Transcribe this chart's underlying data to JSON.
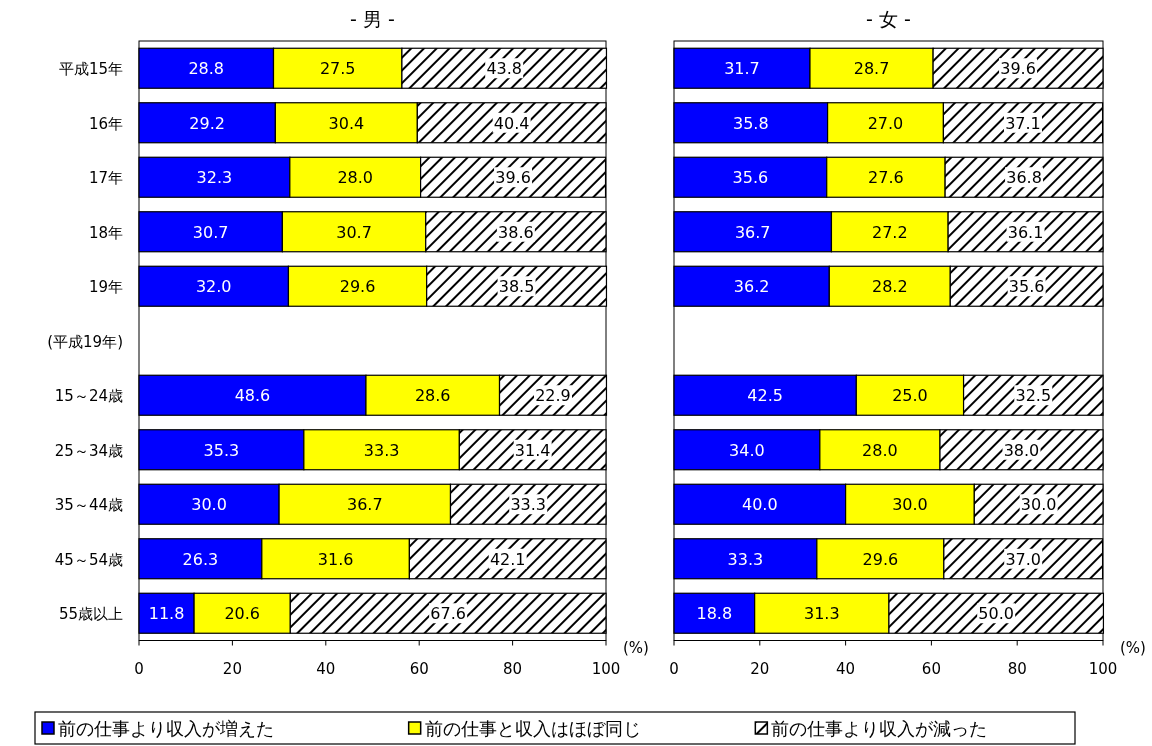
{
  "chart_data": [
    {
      "type": "bar",
      "orientation": "horizontal",
      "stacked": true,
      "title": "- 男 -",
      "xlabel": "(%)",
      "categories": [
        "平成15年",
        "16年",
        "17年",
        "18年",
        "19年",
        "(平成19年)",
        "15～24歳",
        "25～34歳",
        "35～44歳",
        "45～54歳",
        "55歳以上"
      ],
      "series": [
        {
          "name": "前の仕事より収入が増えた",
          "color": "#0000ff",
          "values": [
            28.8,
            29.2,
            32.3,
            30.7,
            32.0,
            null,
            48.6,
            35.3,
            30.0,
            26.3,
            11.8
          ],
          "value_labels": [
            "28.8",
            "29.2",
            "32.3",
            "30.7",
            "32.0",
            null,
            "48.6",
            "35.3",
            "30.0",
            "26.3",
            "11.8"
          ]
        },
        {
          "name": "前の仕事と収入はほぼ同じ",
          "color": "#ffff00",
          "values": [
            27.5,
            30.4,
            28.0,
            30.7,
            29.6,
            null,
            28.6,
            33.3,
            36.7,
            31.6,
            20.6
          ],
          "value_labels": [
            "27.5",
            "30.4",
            "28.0",
            "30.7",
            "29.6",
            null,
            "28.6",
            "33.3",
            "36.7",
            "31.6",
            "20.6"
          ]
        },
        {
          "name": "前の仕事より収入が減った",
          "color": "#000000",
          "values": [
            43.8,
            40.4,
            39.6,
            38.6,
            38.5,
            null,
            22.9,
            31.4,
            33.3,
            42.1,
            67.6
          ],
          "value_labels": [
            "43.8",
            "40.4",
            "39.6",
            "38.6",
            "38.5",
            null,
            "22.9",
            "31.4",
            "33.3",
            "42.1",
            "67.6"
          ]
        }
      ],
      "xlim": [
        0,
        100
      ],
      "xticks": [
        0,
        20,
        40,
        60,
        80,
        100
      ],
      "legend": "bottom",
      "grid": false
    },
    {
      "type": "bar",
      "orientation": "horizontal",
      "stacked": true,
      "title": "- 女 -",
      "xlabel": "(%)",
      "categories": [
        null,
        null,
        null,
        null,
        null,
        null,
        null,
        null,
        null,
        null,
        null
      ],
      "series": [
        {
          "color": "#0000ff",
          "values": [
            31.7,
            35.8,
            35.6,
            36.7,
            36.2,
            null,
            42.5,
            34.0,
            40.0,
            33.3,
            18.8
          ],
          "value_labels": [
            "31.7",
            "35.8",
            "35.6",
            "36.7",
            "36.2",
            null,
            "42.5",
            "34.0",
            "40.0",
            "33.3",
            "18.8"
          ]
        },
        {
          "color": "#ffff00",
          "values": [
            28.7,
            27.0,
            27.6,
            27.2,
            28.2,
            null,
            25.0,
            28.0,
            30.0,
            29.6,
            31.3
          ],
          "value_labels": [
            "28.7",
            "27.0",
            "27.6",
            "27.2",
            "28.2",
            null,
            "25.0",
            "28.0",
            "30.0",
            "29.6",
            "31.3"
          ]
        },
        {
          "color": "#000000",
          "values": [
            39.6,
            37.1,
            36.8,
            36.1,
            35.6,
            null,
            32.5,
            38.0,
            30.0,
            37.0,
            50.0
          ],
          "value_labels": [
            "39.6",
            "37.1",
            "36.8",
            "36.1",
            "35.6",
            null,
            "32.5",
            "38.0",
            "30.0",
            "37.0",
            "50.0"
          ]
        }
      ],
      "xlim": [
        0,
        100
      ],
      "xticks": [
        0,
        20,
        40,
        60,
        80,
        100
      ],
      "tick_labels": "x",
      "grid": false
    }
  ]
}
